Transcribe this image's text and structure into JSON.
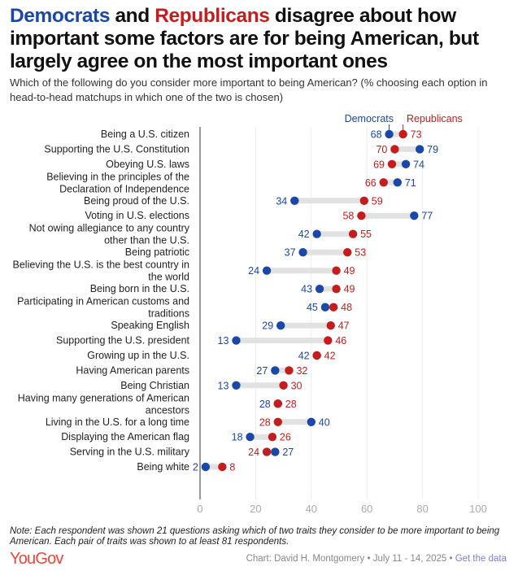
{
  "title": {
    "dem": "Democrats",
    "mid": " and ",
    "rep": "Republicans",
    "rest": " disagree about how important some factors are for being American, but largely agree on the most important ones"
  },
  "subtitle": "Which of the following do you consider more important to being American? (% choosing each option in head-to-head matchups in which one of the two is chosen)",
  "note": "Note: Each respondent was shown 21 questions asking which of two traits they consider to be more important to being American. Each pair of traits was shown to at least 81 respondents.",
  "logo": "YouGov",
  "credit": "Chart: David H. Montgomery • July 11 - 14, 2025 • ",
  "get_data": "Get the data",
  "colors": {
    "dem": "#1a47a8",
    "rep": "#c31d1d",
    "bar": "#e2e2e2"
  },
  "chart_data": {
    "type": "dumbbell",
    "legend": [
      "Democrats",
      "Republicans"
    ],
    "xlim": [
      0,
      100
    ],
    "xticks": [
      0,
      20,
      40,
      60,
      80,
      100
    ],
    "grid": true,
    "rows": [
      {
        "label": [
          "Being a U.S. citizen"
        ],
        "dem": 68,
        "rep": 73
      },
      {
        "label": [
          "Supporting the U.S. Constitution"
        ],
        "dem": 79,
        "rep": 70
      },
      {
        "label": [
          "Obeying U.S. laws"
        ],
        "dem": 74,
        "rep": 69
      },
      {
        "label": [
          "Believing in the principles of the",
          "Declaration of Independence"
        ],
        "dem": 71,
        "rep": 66
      },
      {
        "label": [
          "Being proud of the U.S."
        ],
        "dem": 34,
        "rep": 59
      },
      {
        "label": [
          "Voting in U.S. elections"
        ],
        "dem": 77,
        "rep": 58
      },
      {
        "label": [
          "Not owing allegiance to any country",
          "other than the U.S."
        ],
        "dem": 42,
        "rep": 55
      },
      {
        "label": [
          "Being patriotic"
        ],
        "dem": 37,
        "rep": 53
      },
      {
        "label": [
          "Believing the U.S. is the best country in",
          "the world"
        ],
        "dem": 24,
        "rep": 49
      },
      {
        "label": [
          "Being born in the U.S."
        ],
        "dem": 43,
        "rep": 49
      },
      {
        "label": [
          "Participating in American customs and",
          "traditions"
        ],
        "dem": 45,
        "rep": 48
      },
      {
        "label": [
          "Speaking English"
        ],
        "dem": 29,
        "rep": 47
      },
      {
        "label": [
          "Supporting the U.S. president"
        ],
        "dem": 13,
        "rep": 46
      },
      {
        "label": [
          "Growing up in the U.S."
        ],
        "dem": 42,
        "rep": 42
      },
      {
        "label": [
          "Having American parents"
        ],
        "dem": 27,
        "rep": 32
      },
      {
        "label": [
          "Being Christian"
        ],
        "dem": 13,
        "rep": 30
      },
      {
        "label": [
          "Having many generations of American",
          "ancestors"
        ],
        "dem": 28,
        "rep": 28
      },
      {
        "label": [
          "Living in the U.S. for a long time"
        ],
        "dem": 40,
        "rep": 28
      },
      {
        "label": [
          "Displaying the American flag"
        ],
        "dem": 18,
        "rep": 26
      },
      {
        "label": [
          "Serving in the U.S. military"
        ],
        "dem": 27,
        "rep": 24
      },
      {
        "label": [
          "Being white"
        ],
        "dem": 2,
        "rep": 8
      }
    ]
  }
}
